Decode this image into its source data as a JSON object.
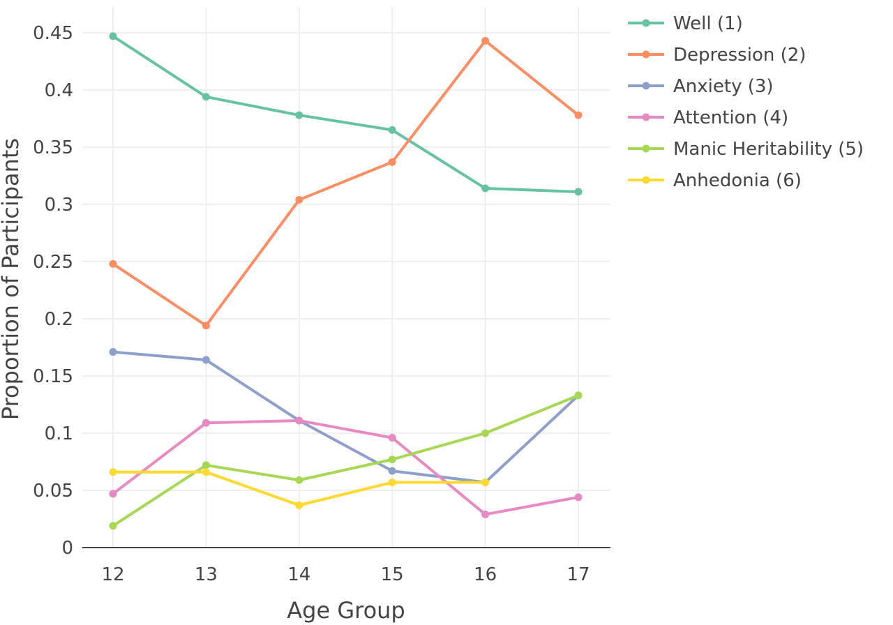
{
  "chart_data": {
    "type": "line",
    "title": "",
    "xlabel": "Age Group",
    "ylabel": "Proportion of Participants",
    "x": [
      12,
      13,
      14,
      15,
      16,
      17
    ],
    "x_tick_labels": [
      "12",
      "13",
      "14",
      "15",
      "16",
      "17"
    ],
    "ylim": [
      0,
      0.47
    ],
    "y_ticks": [
      0,
      0.05,
      0.1,
      0.15,
      0.2,
      0.25,
      0.3,
      0.35,
      0.4,
      0.45
    ],
    "y_tick_labels": [
      "0",
      "0.05",
      "0.1",
      "0.15",
      "0.2",
      "0.25",
      "0.3",
      "0.35",
      "0.4",
      "0.45"
    ],
    "grid": true,
    "legend_position": "top-right, outside plot",
    "series": [
      {
        "name": "Well (1)",
        "color": "#66c2a5",
        "values": [
          0.447,
          0.394,
          0.378,
          0.365,
          0.314,
          0.311
        ]
      },
      {
        "name": "Depression (2)",
        "color": "#fc8d62",
        "values": [
          0.248,
          0.194,
          0.304,
          0.337,
          0.443,
          0.378
        ]
      },
      {
        "name": "Anxiety (3)",
        "color": "#8da0cb",
        "values": [
          0.171,
          0.164,
          0.111,
          0.067,
          0.057,
          0.133
        ]
      },
      {
        "name": "Attention (4)",
        "color": "#e78ac3",
        "values": [
          0.047,
          0.109,
          0.111,
          0.096,
          0.029,
          0.044
        ]
      },
      {
        "name": "Manic Heritability (5)",
        "color": "#a6d854",
        "values": [
          0.019,
          0.072,
          0.059,
          0.077,
          0.1,
          0.133
        ]
      },
      {
        "name": "Anhedonia (6)",
        "color": "#ffd92f",
        "values": [
          0.066,
          0.066,
          0.037,
          0.057,
          0.057,
          null
        ]
      }
    ]
  }
}
